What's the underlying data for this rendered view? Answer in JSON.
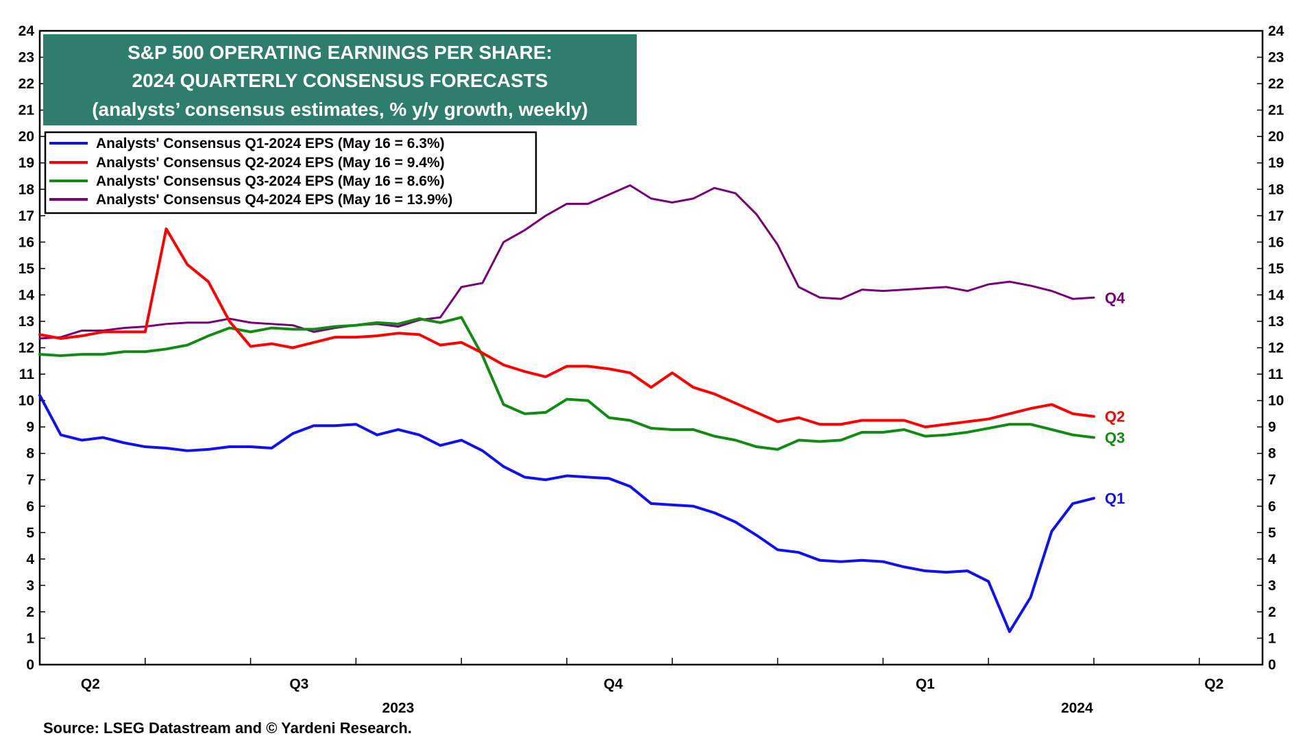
{
  "chart_data": {
    "type": "line",
    "title": [
      "S&P 500 OPERATING EARNINGS PER SHARE:",
      "2024 QUARTERLY CONSENSUS FORECASTS",
      "(analysts’ consensus estimates, % y/y growth, weekly)"
    ],
    "ylim": [
      0,
      24
    ],
    "y_ticks": [
      0,
      1,
      2,
      3,
      4,
      5,
      6,
      7,
      8,
      9,
      10,
      11,
      12,
      13,
      14,
      15,
      16,
      17,
      18,
      19,
      20,
      21,
      22,
      23,
      24
    ],
    "x_range": [
      0,
      58
    ],
    "quarter_labels": [
      {
        "label": "Q2",
        "x": 2.4
      },
      {
        "label": "Q3",
        "x": 12.3
      },
      {
        "label": "Q4",
        "x": 27.2
      },
      {
        "label": "Q1",
        "x": 42.0
      },
      {
        "label": "Q2",
        "x": 55.7
      }
    ],
    "year_labels": [
      {
        "label": "2023",
        "x": 17.0
      },
      {
        "label": "2024",
        "x": 49.2
      }
    ],
    "minor_ticks": [
      5,
      10,
      15,
      20,
      25,
      30,
      35,
      40,
      45,
      50,
      55
    ],
    "series": [
      {
        "name": "Analysts' Consensus Q1-2024 EPS (May 16 = 6.3%)",
        "short": "Q1",
        "color": "#1010f0",
        "values": [
          10.2,
          8.7,
          8.5,
          8.6,
          8.4,
          8.25,
          8.2,
          8.1,
          8.15,
          8.25,
          8.25,
          8.2,
          8.75,
          9.05,
          9.05,
          9.1,
          8.7,
          8.9,
          8.7,
          8.3,
          8.5,
          8.1,
          7.5,
          7.1,
          7.0,
          7.15,
          7.1,
          7.05,
          6.75,
          6.1,
          6.05,
          6.0,
          5.75,
          5.4,
          4.9,
          4.35,
          4.25,
          3.95,
          3.9,
          3.95,
          3.9,
          3.7,
          3.55,
          3.5,
          3.55,
          3.15,
          1.25,
          2.55,
          5.05,
          6.1,
          6.3
        ]
      },
      {
        "name": "Analysts' Consensus Q2-2024 EPS (May 16 = 9.4%)",
        "short": "Q2",
        "color": "#ff0000",
        "values": [
          12.5,
          12.35,
          12.45,
          12.6,
          12.6,
          12.6,
          16.5,
          15.15,
          14.5,
          13.0,
          12.05,
          12.15,
          12.0,
          12.2,
          12.4,
          12.4,
          12.45,
          12.55,
          12.5,
          12.1,
          12.2,
          11.8,
          11.35,
          11.1,
          10.9,
          11.3,
          11.3,
          11.2,
          11.05,
          10.5,
          11.05,
          10.5,
          10.25,
          9.9,
          9.55,
          9.2,
          9.35,
          9.1,
          9.1,
          9.25,
          9.25,
          9.25,
          9.0,
          9.1,
          9.2,
          9.3,
          9.5,
          9.7,
          9.85,
          9.5,
          9.4
        ]
      },
      {
        "name": "Analysts' Consensus Q3-2024 EPS (May 16 = 8.6%)",
        "short": "Q3",
        "color": "#138a13",
        "values": [
          11.75,
          11.7,
          11.75,
          11.75,
          11.85,
          11.85,
          11.95,
          12.1,
          12.45,
          12.75,
          12.6,
          12.75,
          12.7,
          12.7,
          12.8,
          12.85,
          12.95,
          12.9,
          13.1,
          12.95,
          13.15,
          11.7,
          9.85,
          9.5,
          9.55,
          10.05,
          10.0,
          9.35,
          9.25,
          8.95,
          8.9,
          8.9,
          8.65,
          8.5,
          8.25,
          8.15,
          8.5,
          8.45,
          8.5,
          8.8,
          8.8,
          8.9,
          8.65,
          8.7,
          8.8,
          8.95,
          9.1,
          9.1,
          8.9,
          8.7,
          8.6
        ]
      },
      {
        "name": "Analysts' Consensus Q4-2024 EPS (May 16 = 13.9%)",
        "short": "Q4",
        "color": "#7a007a",
        "values": [
          12.35,
          12.4,
          12.65,
          12.65,
          12.75,
          12.8,
          12.9,
          12.95,
          12.95,
          13.1,
          12.95,
          12.9,
          12.85,
          12.6,
          12.75,
          12.85,
          12.9,
          12.8,
          13.05,
          13.15,
          14.3,
          14.45,
          16.0,
          16.45,
          17.0,
          17.45,
          17.45,
          17.8,
          18.15,
          17.65,
          17.5,
          17.65,
          18.05,
          17.85,
          17.05,
          15.9,
          14.3,
          13.9,
          13.85,
          14.2,
          14.15,
          14.2,
          14.25,
          14.3,
          14.15,
          14.4,
          14.5,
          14.35,
          14.15,
          13.85,
          13.9
        ]
      }
    ],
    "source": "Source: LSEG Datastream and © Yardeni Research."
  }
}
